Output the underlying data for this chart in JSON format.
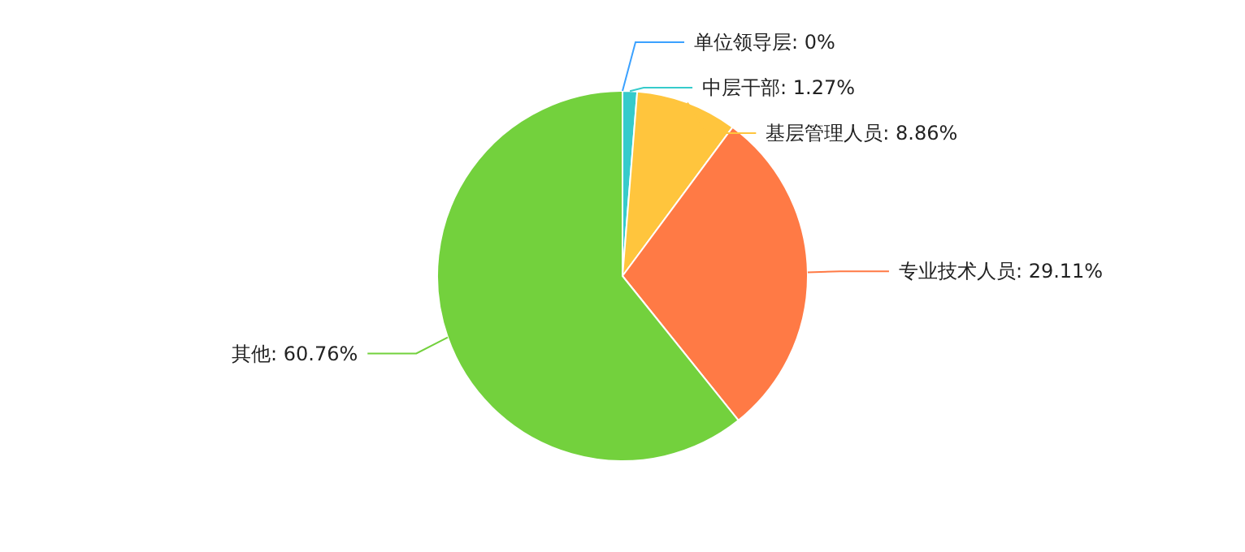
{
  "chart_data": {
    "type": "pie",
    "categories": [
      "单位领导层",
      "中层干部",
      "基层管理人员",
      "专业技术人员",
      "其他"
    ],
    "values": [
      0,
      1.27,
      8.86,
      29.11,
      60.76
    ],
    "colors": [
      "#3ba1ff",
      "#36cbcb",
      "#ffc53d",
      "#ff7a45",
      "#73d13d"
    ],
    "value_labels": [
      ": 0%",
      ": 1.27%",
      ": 8.86%",
      ": 29.11%",
      ": 60.76%"
    ]
  }
}
